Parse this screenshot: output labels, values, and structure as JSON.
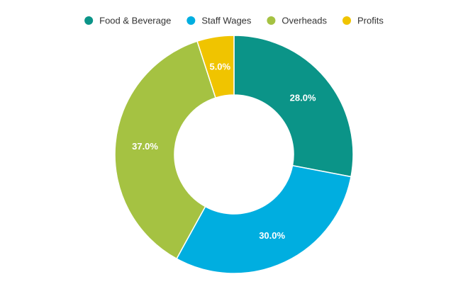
{
  "chart_data": {
    "type": "pie",
    "donut": true,
    "legend_position": "top",
    "slices": [
      {
        "name": "Food & Beverage",
        "value": 28.0,
        "label": "28.0%",
        "color": "#0b9488"
      },
      {
        "name": "Staff Wages",
        "value": 30.0,
        "label": "30.0%",
        "color": "#00aee0"
      },
      {
        "name": "Overheads",
        "value": 37.0,
        "label": "37.0%",
        "color": "#a5c242"
      },
      {
        "name": "Profits",
        "value": 5.0,
        "label": "5.0%",
        "color": "#f0c400"
      }
    ]
  }
}
